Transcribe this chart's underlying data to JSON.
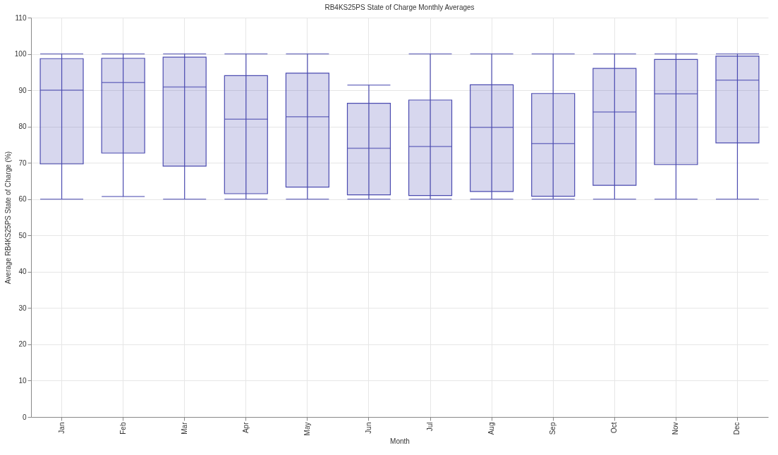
{
  "chart_data": {
    "type": "box",
    "title": "RB4KS25PS State of Charge Monthly Averages",
    "xlabel": "Month",
    "ylabel": "Average RB4KS25PS State of Charge (%)",
    "categories": [
      "Jan",
      "Feb",
      "Mar",
      "Apr",
      "May",
      "Jun",
      "Jul",
      "Aug",
      "Sep",
      "Oct",
      "Nov",
      "Dec"
    ],
    "color": "#4b4bb0",
    "grid": true,
    "ylim": [
      0,
      110
    ],
    "yticks": [
      0,
      10,
      20,
      30,
      40,
      50,
      60,
      70,
      80,
      90,
      100,
      110
    ],
    "boxes": [
      {
        "low": 60,
        "q1": 69.7,
        "median": 90,
        "q3": 98.7,
        "high": 100
      },
      {
        "low": 60.7,
        "q1": 72.7,
        "median": 92.1,
        "q3": 98.8,
        "high": 100
      },
      {
        "low": 60,
        "q1": 69.1,
        "median": 90.9,
        "q3": 99.1,
        "high": 100
      },
      {
        "low": 60,
        "q1": 61.5,
        "median": 82,
        "q3": 94,
        "high": 100
      },
      {
        "low": 60,
        "q1": 63.3,
        "median": 82.7,
        "q3": 94.7,
        "high": 100
      },
      {
        "low": 60,
        "q1": 61.2,
        "median": 74,
        "q3": 86.4,
        "high": 91.4
      },
      {
        "low": 60,
        "q1": 61,
        "median": 74.5,
        "q3": 87.3,
        "high": 100
      },
      {
        "low": 60,
        "q1": 62.1,
        "median": 79.8,
        "q3": 91.5,
        "high": 100
      },
      {
        "low": 60,
        "q1": 60.8,
        "median": 75.3,
        "q3": 89.1,
        "high": 100
      },
      {
        "low": 60,
        "q1": 63.8,
        "median": 84,
        "q3": 96,
        "high": 100
      },
      {
        "low": 60,
        "q1": 69.5,
        "median": 89,
        "q3": 98.5,
        "high": 100
      },
      {
        "low": 60,
        "q1": 75.5,
        "median": 92.8,
        "q3": 99.4,
        "high": 100
      }
    ]
  }
}
